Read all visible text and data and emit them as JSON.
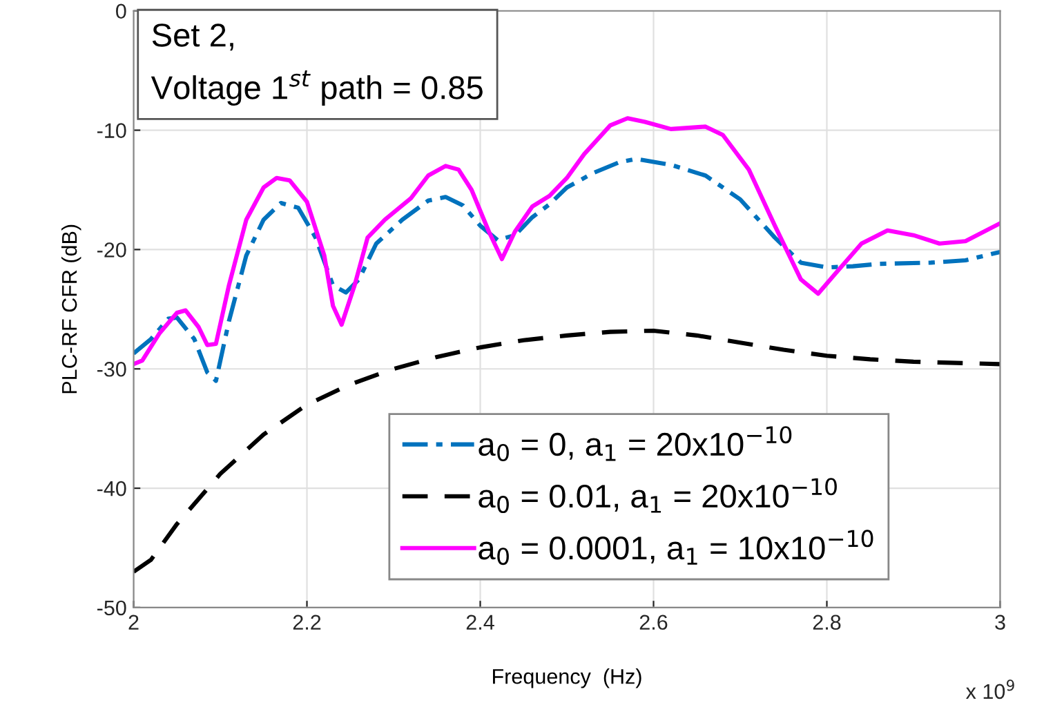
{
  "chart_data": {
    "type": "line",
    "xlabel": "Frequency  (Hz)",
    "ylabel": "PLC-RF CFR (dB)",
    "xlim": [
      2,
      3
    ],
    "ylim": [
      -50,
      0
    ],
    "xticks": [
      2,
      2.2,
      2.4,
      2.6,
      2.8,
      3
    ],
    "yticks": [
      {
        "value": 0,
        "label": "0"
      },
      {
        "value": -10,
        "label": "-10"
      },
      {
        "value": -20,
        "label": "-20"
      },
      {
        "value": -30,
        "label": "-30"
      },
      {
        "value": -40,
        "label": "-40"
      },
      {
        "value": -50,
        "label": "-50"
      }
    ],
    "grid": true,
    "legend": "bottom right",
    "annotations": [
      "Set 2,\nVoltage 1$^{st}$ path = 0.85",
      "x 10$^{9}$"
    ],
    "series": [
      {
        "name": "a$_{0}$ = 0, a$_{1}$ = 20x10$^{−10}$",
        "color": "#0072bd",
        "line_style": "dashdot",
        "x": [
          2.0,
          2.02,
          2.04,
          2.05,
          2.07,
          2.085,
          2.095,
          2.11,
          2.13,
          2.15,
          2.17,
          2.19,
          2.21,
          2.23,
          2.245,
          2.26,
          2.28,
          2.31,
          2.34,
          2.36,
          2.38,
          2.4,
          2.42,
          2.44,
          2.46,
          2.48,
          2.5,
          2.53,
          2.56,
          2.58,
          2.62,
          2.66,
          2.7,
          2.74,
          2.77,
          2.8,
          2.83,
          2.86,
          2.92,
          2.96,
          3.0
        ],
        "values": [
          -28.7,
          -27.5,
          -25.8,
          -25.7,
          -27.5,
          -30.3,
          -31.0,
          -26,
          -20.5,
          -17.5,
          -16.1,
          -16.5,
          -19,
          -23,
          -23.6,
          -22.5,
          -19.5,
          -17.5,
          -15.9,
          -15.6,
          -16.3,
          -18,
          -19.2,
          -18.8,
          -17.3,
          -16.2,
          -14.8,
          -13.6,
          -12.7,
          -12.4,
          -12.9,
          -13.8,
          -15.8,
          -19,
          -21.1,
          -21.5,
          -21.4,
          -21.2,
          -21.1,
          -20.9,
          -20.2
        ]
      },
      {
        "name": "a$_{0}$ = 0.01, a$_{1}$ = 20x10$^{−10}$",
        "color": "#000000",
        "line_style": "dashed",
        "x": [
          2.0,
          2.02,
          2.05,
          2.1,
          2.15,
          2.2,
          2.25,
          2.3,
          2.35,
          2.4,
          2.45,
          2.5,
          2.55,
          2.6,
          2.65,
          2.7,
          2.75,
          2.8,
          2.85,
          2.9,
          3.0
        ],
        "values": [
          -47,
          -46,
          -43,
          -38.8,
          -35.5,
          -33,
          -31.3,
          -30,
          -29,
          -28.2,
          -27.6,
          -27.2,
          -26.9,
          -26.8,
          -27.2,
          -27.8,
          -28.4,
          -28.9,
          -29.2,
          -29.4,
          -29.6
        ]
      },
      {
        "name": "a$_{0}$ = 0.0001, a$_{1}$ = 10x10$^{−10}$",
        "color": "#ff00ff",
        "line_style": "solid",
        "x": [
          2.0,
          2.01,
          2.03,
          2.05,
          2.06,
          2.075,
          2.085,
          2.095,
          2.11,
          2.13,
          2.15,
          2.165,
          2.18,
          2.2,
          2.22,
          2.23,
          2.24,
          2.255,
          2.27,
          2.29,
          2.32,
          2.34,
          2.36,
          2.375,
          2.39,
          2.41,
          2.425,
          2.44,
          2.46,
          2.48,
          2.5,
          2.52,
          2.55,
          2.57,
          2.59,
          2.62,
          2.66,
          2.68,
          2.71,
          2.74,
          2.77,
          2.79,
          2.81,
          2.84,
          2.87,
          2.9,
          2.93,
          2.96,
          3.0
        ],
        "values": [
          -29.6,
          -29.3,
          -27,
          -25.3,
          -25.1,
          -26.5,
          -28,
          -27.9,
          -23,
          -17.5,
          -14.8,
          -14.0,
          -14.2,
          -16,
          -20.5,
          -24.7,
          -26.3,
          -23,
          -19,
          -17.5,
          -15.7,
          -13.8,
          -13.0,
          -13.3,
          -15,
          -18.5,
          -20.8,
          -18.5,
          -16.4,
          -15.5,
          -14,
          -12,
          -9.6,
          -9.0,
          -9.3,
          -9.9,
          -9.7,
          -10.4,
          -13.3,
          -18,
          -22.5,
          -23.7,
          -22,
          -19.5,
          -18.4,
          -18.8,
          -19.5,
          -19.3,
          -17.8
        ]
      }
    ]
  }
}
